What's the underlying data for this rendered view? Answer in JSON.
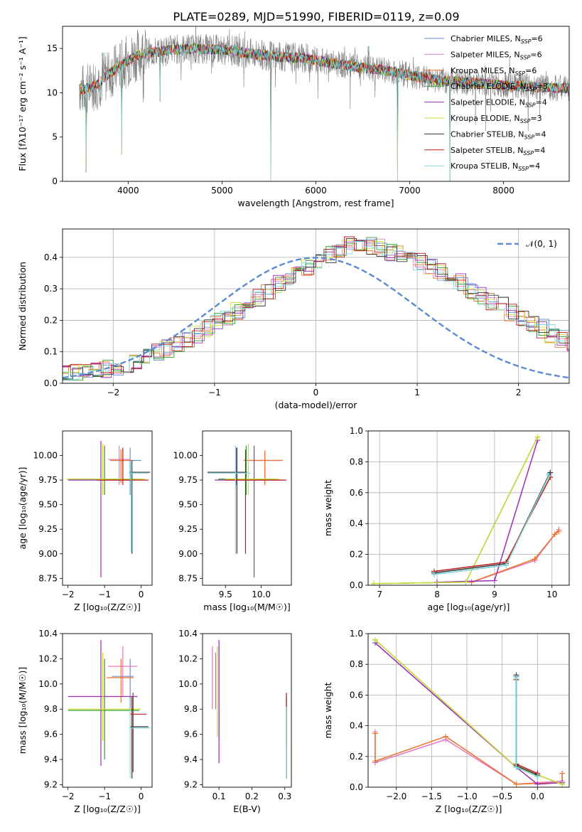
{
  "figure_title": "PLATE=0289, MJD=51990, FIBERID=0119, z=0.09",
  "series_names": [
    {
      "main": "Chabrier MILES, N",
      "sub": "SSP",
      "tail": "=6",
      "color": "#6a8ed6"
    },
    {
      "main": "Salpeter MILES, N",
      "sub": "SSP",
      "tail": "=6",
      "color": "#e377c2"
    },
    {
      "main": "Kroupa MILES, N",
      "sub": "SSP",
      "tail": "=6",
      "color": "#e8742a"
    },
    {
      "main": "Chabrier ELODIE, N",
      "sub": "SSP",
      "tail": "=3",
      "color": "#2ca02c"
    },
    {
      "main": "Salpeter ELODIE, N",
      "sub": "SSP",
      "tail": "=4",
      "color": "#9b2fb5"
    },
    {
      "main": "Kroupa ELODIE, N",
      "sub": "SSP",
      "tail": "=3",
      "color": "#cddc39"
    },
    {
      "main": "Chabrier STELIB, N",
      "sub": "SSP",
      "tail": "=4",
      "color": "#333333"
    },
    {
      "main": "Salpeter STELIB, N",
      "sub": "SSP",
      "tail": "=4",
      "color": "#b71c1c"
    },
    {
      "main": "Kroupa STELIB, N",
      "sub": "SSP",
      "tail": "=4",
      "color": "#80d8d8"
    }
  ],
  "chart_data": [
    {
      "id": "spectrum",
      "type": "line",
      "xlabel": "wavelength [Angstrom, rest frame]",
      "ylabel": "Flux [fλ10⁻¹⁷ erg cm⁻² s⁻¹ A⁻¹]",
      "xlim": [
        3300,
        8700
      ],
      "ylim": [
        0,
        17.5
      ],
      "xticks": [
        4000,
        5000,
        6000,
        7000,
        8000
      ],
      "yticks": [
        0,
        5,
        10,
        15
      ],
      "data_color": "#808080",
      "continuum": [
        [
          3500,
          10.3
        ],
        [
          3600,
          10.6
        ],
        [
          3700,
          11.2
        ],
        [
          3800,
          12.2
        ],
        [
          3900,
          12.9
        ],
        [
          4000,
          13.6
        ],
        [
          4100,
          14.3
        ],
        [
          4300,
          14.6
        ],
        [
          4500,
          14.9
        ],
        [
          4700,
          15.0
        ],
        [
          4900,
          14.9
        ],
        [
          5100,
          14.8
        ],
        [
          5300,
          14.4
        ],
        [
          5500,
          14.2
        ],
        [
          5700,
          14.0
        ],
        [
          5900,
          13.9
        ],
        [
          6100,
          13.5
        ],
        [
          6300,
          13.1
        ],
        [
          6500,
          12.8
        ],
        [
          6700,
          12.6
        ],
        [
          6900,
          12.2
        ],
        [
          7100,
          11.8
        ],
        [
          7300,
          11.4
        ],
        [
          7500,
          11.3
        ],
        [
          7800,
          11.0
        ],
        [
          8100,
          10.8
        ],
        [
          8400,
          10.6
        ],
        [
          8700,
          10.5
        ]
      ],
      "absorption": [
        [
          3550,
          1.0
        ],
        [
          3700,
          9.5
        ],
        [
          3930,
          3.0
        ],
        [
          4340,
          9.0
        ],
        [
          5520,
          0.0
        ],
        [
          5890,
          13.0
        ],
        [
          6870,
          0.0
        ],
        [
          7430,
          0.0
        ]
      ],
      "emission": [
        [
          3727,
          14.5
        ],
        [
          4861,
          14.6
        ],
        [
          5007,
          15.6
        ],
        [
          6563,
          15.2
        ]
      ],
      "legend": "top-right"
    },
    {
      "id": "residuals",
      "type": "histogram",
      "xlabel": "(data-model)/error",
      "ylabel": "Normed distribution",
      "xlim": [
        -2.5,
        2.5
      ],
      "ylim": [
        0,
        0.49
      ],
      "xticks": [
        -2,
        -1,
        0,
        1,
        2
      ],
      "yticks": [
        0.0,
        0.1,
        0.2,
        0.3,
        0.4
      ],
      "grid": true,
      "bin_width": 0.1,
      "profile": [
        0.03,
        0.033,
        0.037,
        0.041,
        0.046,
        0.053,
        0.061,
        0.071,
        0.082,
        0.095,
        0.11,
        0.125,
        0.142,
        0.158,
        0.175,
        0.193,
        0.212,
        0.232,
        0.252,
        0.27,
        0.29,
        0.314,
        0.333,
        0.353,
        0.371,
        0.392,
        0.41,
        0.425,
        0.438,
        0.444,
        0.438,
        0.43,
        0.418,
        0.408,
        0.396,
        0.384,
        0.37,
        0.355,
        0.337,
        0.318,
        0.298,
        0.28,
        0.262,
        0.244,
        0.226,
        0.209,
        0.192,
        0.174,
        0.158,
        0.142,
        0.128,
        0.114,
        0.101,
        0.088,
        0.076,
        0.066,
        0.057,
        0.049,
        0.042,
        0.036
      ],
      "gaussian_label": "𝒩(0, 1)",
      "gaussian_color": "#5b8bd0",
      "legend": "top-right"
    },
    {
      "id": "age_vs_Z",
      "type": "errorbar",
      "xlabel": "Z [log₁₀(Z/Z☉)]",
      "ylabel": "age  [log₁₀(age/yr)]",
      "xlim": [
        -2.15,
        0.3
      ],
      "ylim": [
        8.68,
        10.25
      ],
      "xticks": [
        -2,
        -1,
        0
      ],
      "yticks": [
        8.75,
        9.0,
        9.25,
        9.5,
        9.75,
        10.0
      ],
      "points": [
        {
          "s": 0,
          "x": -0.3,
          "xe": [
            -0.85,
            0.0
          ],
          "y": 9.95,
          "ye": [
            9.6,
            10.08
          ]
        },
        {
          "s": 1,
          "x": -0.6,
          "xe": [
            -0.9,
            -0.3
          ],
          "y": 9.96,
          "ye": [
            9.7,
            10.1
          ]
        },
        {
          "s": 2,
          "x": -0.55,
          "xe": [
            -0.85,
            -0.25
          ],
          "y": 9.95,
          "ye": [
            9.72,
            10.06
          ]
        },
        {
          "s": 3,
          "x": -1.0,
          "xe": [
            -2.0,
            0.0
          ],
          "y": 9.76,
          "ye": [
            9.6,
            10.1
          ]
        },
        {
          "s": 4,
          "x": -1.1,
          "xe": [
            -2.0,
            -0.3
          ],
          "y": 9.75,
          "ye": [
            8.76,
            10.15
          ]
        },
        {
          "s": 5,
          "x": -1.05,
          "xe": [
            -2.05,
            0.1
          ],
          "y": 9.76,
          "ye": [
            9.6,
            10.12
          ]
        },
        {
          "s": 6,
          "x": -0.25,
          "xe": [
            -0.3,
            0.25
          ],
          "y": 9.83,
          "ye": [
            9.0,
            9.95
          ]
        },
        {
          "s": 7,
          "x": -0.5,
          "xe": [
            -1.2,
            0.2
          ],
          "y": 9.75,
          "ye": [
            9.7,
            10.08
          ]
        },
        {
          "s": 8,
          "x": -0.27,
          "xe": [
            -0.35,
            0.2
          ],
          "y": 9.82,
          "ye": [
            9.02,
            9.93
          ]
        }
      ]
    },
    {
      "id": "age_vs_mass",
      "type": "errorbar",
      "xlabel": "mass [log₁₀(M/M☉)]",
      "ylabel": "",
      "xlim": [
        9.18,
        10.42
      ],
      "ylim": [
        8.68,
        10.25
      ],
      "xticks": [
        9.5,
        10.0
      ],
      "yticks": [
        8.75,
        9.0,
        9.25,
        9.5,
        9.75,
        10.0
      ],
      "points": [
        {
          "s": 0,
          "x": 9.65,
          "xe": [
            9.25,
            9.8
          ],
          "y": 9.83,
          "ye": [
            9.7,
            10.08
          ]
        },
        {
          "s": 1,
          "x": 10.05,
          "xe": [
            9.75,
            10.3
          ],
          "y": 9.95,
          "ye": [
            9.7,
            10.05
          ]
        },
        {
          "s": 2,
          "x": 10.05,
          "xe": [
            9.8,
            10.3
          ],
          "y": 9.95,
          "ye": [
            9.7,
            10.05
          ]
        },
        {
          "s": 3,
          "x": 9.79,
          "xe": [
            9.4,
            10.2
          ],
          "y": 9.76,
          "ye": [
            9.6,
            10.1
          ]
        },
        {
          "s": 4,
          "x": 9.9,
          "xe": [
            9.35,
            10.3
          ],
          "y": 9.75,
          "ye": [
            8.76,
            10.1
          ]
        },
        {
          "s": 5,
          "x": 9.82,
          "xe": [
            9.5,
            10.25
          ],
          "y": 9.76,
          "ye": [
            9.6,
            10.12
          ]
        },
        {
          "s": 6,
          "x": 9.66,
          "xe": [
            9.25,
            9.8
          ],
          "y": 9.83,
          "ye": [
            9.0,
            10.08
          ]
        },
        {
          "s": 7,
          "x": 9.78,
          "xe": [
            9.5,
            10.35
          ],
          "y": 9.75,
          "ye": [
            9.0,
            10.06
          ]
        },
        {
          "s": 8,
          "x": 9.64,
          "xe": [
            9.25,
            9.85
          ],
          "y": 9.82,
          "ye": [
            9.0,
            10.1
          ]
        }
      ]
    },
    {
      "id": "weight_vs_age",
      "type": "line",
      "xlabel": "age  [log₁₀(age/yr)]",
      "ylabel": "mass weight",
      "xlim": [
        6.8,
        10.3
      ],
      "ylim": [
        0,
        1.0
      ],
      "xticks": [
        7,
        8,
        9,
        10
      ],
      "yticks": [
        0.0,
        0.2,
        0.4,
        0.6,
        0.8,
        1.0
      ],
      "grid": true,
      "lines": [
        {
          "s": 0,
          "x": [
            7.95,
            9.2,
            9.95
          ],
          "y": [
            0.07,
            0.13,
            0.72
          ]
        },
        {
          "s": 1,
          "x": [
            8.6,
            9.7,
            10.05,
            10.12
          ],
          "y": [
            0.02,
            0.16,
            0.33,
            0.36
          ]
        },
        {
          "s": 2,
          "x": [
            8.6,
            9.7,
            10.05,
            10.12
          ],
          "y": [
            0.02,
            0.17,
            0.33,
            0.35
          ]
        },
        {
          "s": 3,
          "x": [
            6.9,
            8.5,
            9.75
          ],
          "y": [
            0.01,
            0.02,
            0.96
          ]
        },
        {
          "s": 4,
          "x": [
            8.0,
            9.0,
            9.75
          ],
          "y": [
            0.02,
            0.03,
            0.94
          ]
        },
        {
          "s": 5,
          "x": [
            6.9,
            8.5,
            9.75
          ],
          "y": [
            0.01,
            0.02,
            0.96
          ]
        },
        {
          "s": 6,
          "x": [
            7.95,
            9.2,
            9.97
          ],
          "y": [
            0.08,
            0.14,
            0.73
          ]
        },
        {
          "s": 7,
          "x": [
            7.95,
            9.2,
            9.97
          ],
          "y": [
            0.09,
            0.15,
            0.7
          ]
        },
        {
          "s": 8,
          "x": [
            7.95,
            9.2,
            9.95
          ],
          "y": [
            0.07,
            0.13,
            0.71
          ]
        }
      ]
    },
    {
      "id": "mass_vs_Z",
      "type": "errorbar",
      "xlabel": "Z [log₁₀(Z/Z☉)]",
      "ylabel": "mass [log₁₀(M/M☉)]",
      "xlim": [
        -2.15,
        0.3
      ],
      "ylim": [
        9.18,
        10.4
      ],
      "xticks": [
        -2,
        -1,
        0
      ],
      "yticks": [
        9.2,
        9.4,
        9.6,
        9.8,
        10.0,
        10.2,
        10.4
      ],
      "points": [
        {
          "s": 0,
          "x": -0.3,
          "xe": [
            -0.8,
            -0.2
          ],
          "y": 10.06,
          "ye": [
            9.8,
            10.2
          ]
        },
        {
          "s": 1,
          "x": -0.5,
          "xe": [
            -0.9,
            -0.1
          ],
          "y": 10.14,
          "ye": [
            9.9,
            10.3
          ]
        },
        {
          "s": 2,
          "x": -0.55,
          "xe": [
            -0.95,
            -0.2
          ],
          "y": 10.05,
          "ye": [
            9.85,
            10.2
          ]
        },
        {
          "s": 3,
          "x": -1.0,
          "xe": [
            -2.0,
            -0.05
          ],
          "y": 9.79,
          "ye": [
            9.4,
            10.2
          ]
        },
        {
          "s": 4,
          "x": -1.1,
          "xe": [
            -2.0,
            -0.1
          ],
          "y": 9.9,
          "ye": [
            9.35,
            10.35
          ]
        },
        {
          "s": 5,
          "x": -1.05,
          "xe": [
            -2.0,
            0.0
          ],
          "y": 9.8,
          "ye": [
            9.55,
            10.25
          ]
        },
        {
          "s": 6,
          "x": -0.25,
          "xe": [
            -0.3,
            0.2
          ],
          "y": 9.66,
          "ye": [
            9.25,
            9.9
          ]
        },
        {
          "s": 7,
          "x": -0.22,
          "xe": [
            -0.3,
            0.15
          ],
          "y": 9.76,
          "ye": [
            9.3,
            9.93
          ]
        },
        {
          "s": 8,
          "x": -0.3,
          "xe": [
            -0.32,
            0.25
          ],
          "y": 9.65,
          "ye": [
            9.25,
            9.8
          ]
        }
      ]
    },
    {
      "id": "mass_vs_EBV",
      "type": "errorbar",
      "xlabel": "E(B-V)",
      "ylabel": "",
      "xlim": [
        0.05,
        0.32
      ],
      "ylim": [
        9.18,
        10.4
      ],
      "xticks": [
        0.1,
        0.2,
        0.3
      ],
      "yticks": [
        9.2,
        9.4,
        9.6,
        9.8,
        10.0,
        10.2,
        10.4
      ],
      "points": [
        {
          "s": 0,
          "x": 0.305,
          "xe": [
            0.305,
            0.305
          ],
          "y": 9.65,
          "ye": [
            9.25,
            9.85
          ]
        },
        {
          "s": 1,
          "x": 0.08,
          "xe": [
            0.08,
            0.08
          ],
          "y": 10.14,
          "ye": [
            9.8,
            10.3
          ]
        },
        {
          "s": 2,
          "x": 0.09,
          "xe": [
            0.09,
            0.09
          ],
          "y": 10.05,
          "ye": [
            9.8,
            10.25
          ]
        },
        {
          "s": 3,
          "x": 0.1,
          "xe": [
            0.1,
            0.1
          ],
          "y": 9.79,
          "ye": [
            9.55,
            10.3
          ]
        },
        {
          "s": 4,
          "x": 0.1,
          "xe": [
            0.1,
            0.1
          ],
          "y": 9.9,
          "ye": [
            9.37,
            10.35
          ]
        },
        {
          "s": 5,
          "x": 0.095,
          "xe": [
            0.095,
            0.095
          ],
          "y": 9.8,
          "ye": [
            9.58,
            10.3
          ]
        },
        {
          "s": 6,
          "x": 0.305,
          "xe": [
            0.305,
            0.305
          ],
          "y": 9.66,
          "ye": [
            9.25,
            9.9
          ]
        },
        {
          "s": 7,
          "x": 0.305,
          "xe": [
            0.305,
            0.305
          ],
          "y": 9.76,
          "ye": [
            9.5,
            9.93
          ]
        },
        {
          "s": 8,
          "x": 0.305,
          "xe": [
            0.305,
            0.305
          ],
          "y": 9.64,
          "ye": [
            9.25,
            9.82
          ]
        }
      ]
    },
    {
      "id": "weight_vs_Z",
      "type": "line",
      "xlabel": "Z [log₁₀(Z/Z☉)]",
      "ylabel": "mass weight",
      "xlim": [
        -2.4,
        0.45
      ],
      "ylim": [
        0,
        1.0
      ],
      "xticks": [
        -2.0,
        -1.5,
        -1.0,
        -0.5,
        0.0
      ],
      "yticks": [
        0.0,
        0.2,
        0.4,
        0.6,
        0.8,
        1.0
      ],
      "grid": true,
      "lines": [
        {
          "s": 0,
          "x": [
            -0.3,
            -0.3,
            0.0
          ],
          "y": [
            0.72,
            0.13,
            0.07
          ]
        },
        {
          "s": 1,
          "x": [
            -2.3,
            -2.3,
            -1.3,
            -0.3,
            0.35,
            0.35
          ],
          "y": [
            0.36,
            0.16,
            0.31,
            0.02,
            0.04,
            0.09
          ]
        },
        {
          "s": 2,
          "x": [
            -2.3,
            -2.3,
            -1.3,
            -0.3,
            0.35,
            0.35
          ],
          "y": [
            0.35,
            0.17,
            0.33,
            0.02,
            0.03,
            0.09
          ]
        },
        {
          "s": 3,
          "x": [
            -2.3,
            -0.3,
            0.35
          ],
          "y": [
            0.96,
            0.13,
            0.02
          ]
        },
        {
          "s": 4,
          "x": [
            -2.3,
            -0.3,
            0.0,
            0.35
          ],
          "y": [
            0.94,
            0.13,
            0.02,
            0.03
          ]
        },
        {
          "s": 5,
          "x": [
            -2.3,
            -0.3,
            0.35
          ],
          "y": [
            0.96,
            0.13,
            0.02
          ]
        },
        {
          "s": 6,
          "x": [
            -0.3,
            -0.3,
            0.0
          ],
          "y": [
            0.73,
            0.14,
            0.08
          ]
        },
        {
          "s": 7,
          "x": [
            -0.3,
            -0.3,
            0.0
          ],
          "y": [
            0.7,
            0.15,
            0.09
          ]
        },
        {
          "s": 8,
          "x": [
            -0.3,
            -0.3,
            0.0
          ],
          "y": [
            0.71,
            0.13,
            0.07
          ]
        }
      ]
    }
  ]
}
